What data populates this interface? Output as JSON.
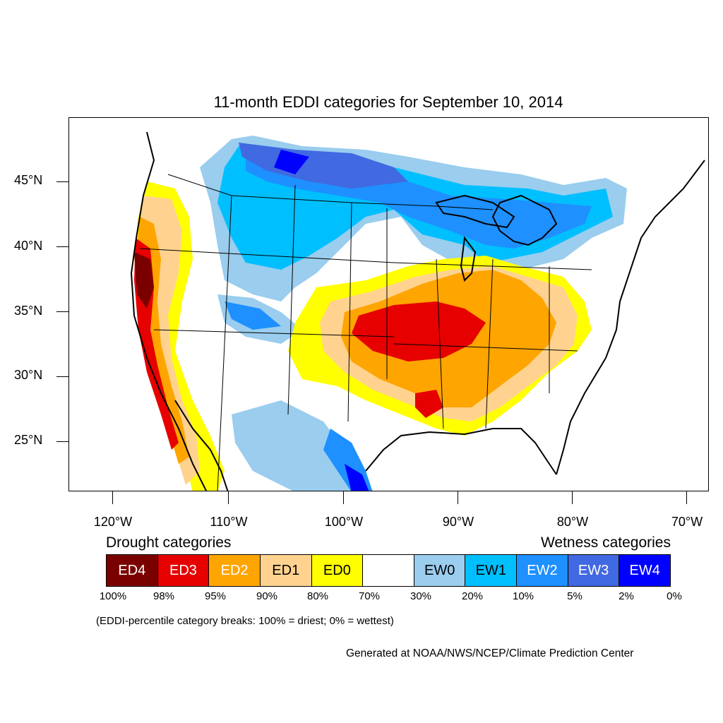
{
  "title": "11-month EDDI categories for September 10, 2014",
  "map": {
    "region": "Contiguous United States",
    "lat_labels": [
      "45°N",
      "40°N",
      "35°N",
      "30°N",
      "25°N"
    ],
    "lon_labels": [
      "120°W",
      "110°W",
      "100°W",
      "90°W",
      "80°W",
      "70°W"
    ]
  },
  "legend": {
    "drought_title": "Drought categories",
    "wetness_title": "Wetness categories",
    "categories": [
      {
        "label": "ED4",
        "color": "#7a0000",
        "text_color": "#ffffff"
      },
      {
        "label": "ED3",
        "color": "#e60000",
        "text_color": "#ffffff"
      },
      {
        "label": "ED2",
        "color": "#ffa500",
        "text_color": "#ffffff"
      },
      {
        "label": "ED1",
        "color": "#ffd38f",
        "text_color": "#000000"
      },
      {
        "label": "ED0",
        "color": "#ffff00",
        "text_color": "#000000"
      },
      {
        "label": "",
        "color": "#ffffff",
        "text_color": "#000000"
      },
      {
        "label": "EW0",
        "color": "#9acdee",
        "text_color": "#000000"
      },
      {
        "label": "EW1",
        "color": "#00bfff",
        "text_color": "#000000"
      },
      {
        "label": "EW2",
        "color": "#1e90ff",
        "text_color": "#ffffff"
      },
      {
        "label": "EW3",
        "color": "#4169e1",
        "text_color": "#ffffff"
      },
      {
        "label": "EW4",
        "color": "#0000ff",
        "text_color": "#ffffff"
      }
    ],
    "breaks": [
      "100%",
      "98%",
      "95%",
      "90%",
      "80%",
      "70%",
      "30%",
      "20%",
      "10%",
      "5%",
      "2%",
      "0%"
    ]
  },
  "note": "(EDDI-percentile category breaks: 100% = driest; 0% = wettest)",
  "credit": "Generated at NOAA/NWS/NCEP/Climate Prediction Center"
}
